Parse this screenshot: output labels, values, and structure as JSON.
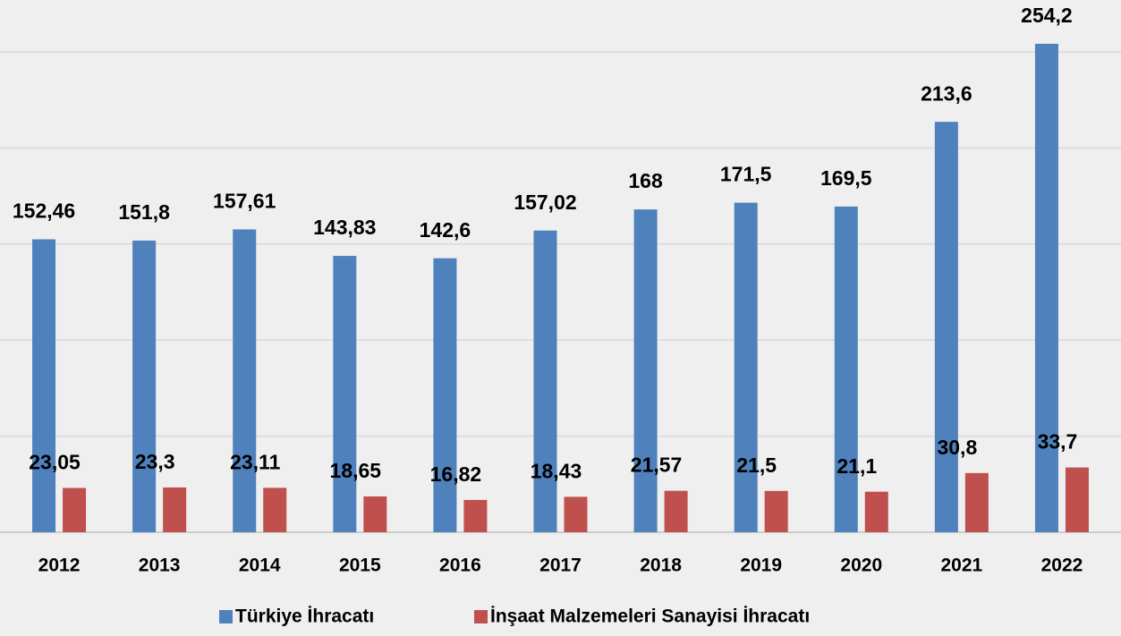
{
  "chart_data": {
    "type": "bar",
    "categories": [
      "2012",
      "2013",
      "2014",
      "2015",
      "2016",
      "2017",
      "2018",
      "2019",
      "2020",
      "2021",
      "2022"
    ],
    "series": [
      {
        "name": "Türkiye İhracatı",
        "color": "#4f81bd",
        "values": [
          152.46,
          151.8,
          157.61,
          143.83,
          142.6,
          157.02,
          168,
          171.5,
          169.5,
          213.6,
          254.2
        ],
        "value_labels": [
          "152,46",
          "151,8",
          "157,61",
          "143,83",
          "142,6",
          "157,02",
          "168",
          "171,5",
          "169,5",
          "213,6",
          "254,2"
        ]
      },
      {
        "name": "İnşaat Malzemeleri Sanayisi İhracatı",
        "color": "#c0504d",
        "values": [
          23.05,
          23.3,
          23.11,
          18.65,
          16.82,
          18.43,
          21.57,
          21.5,
          21.1,
          30.8,
          33.7
        ],
        "value_labels": [
          "23,05",
          "23,3",
          "23,11",
          "18,65",
          "16,82",
          "18,43",
          "21,57",
          "21,5",
          "21,1",
          "30,8",
          "33,7"
        ]
      }
    ],
    "ylim": [
      0,
      277
    ],
    "yticks": [
      0,
      50,
      100,
      150,
      200,
      250
    ],
    "grid": true,
    "legend": "bottom"
  }
}
